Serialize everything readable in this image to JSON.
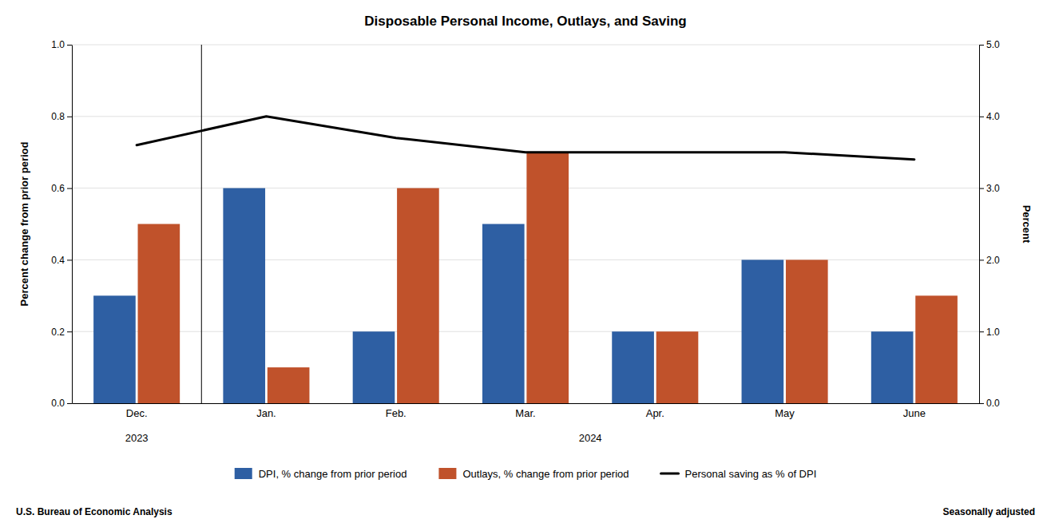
{
  "chart_data": {
    "type": "bar",
    "title": "Disposable Personal Income, Outlays, and Saving",
    "categories": [
      "Dec.",
      "Jan.",
      "Feb.",
      "Mar.",
      "Apr.",
      "May",
      "June"
    ],
    "series": [
      {
        "name": "DPI, % change from prior period",
        "color": "#2E5FA3",
        "values": [
          0.3,
          0.6,
          0.2,
          0.5,
          0.2,
          0.4,
          0.2
        ]
      },
      {
        "name": "Outlays, % change from prior period",
        "color": "#C0522B",
        "values": [
          0.5,
          0.1,
          0.6,
          0.7,
          0.2,
          0.4,
          0.3
        ]
      },
      {
        "name": "Personal saving as % of DPI",
        "color": "#000000",
        "type": "line",
        "axis": "y2",
        "values": [
          3.6,
          4.0,
          3.7,
          3.5,
          3.5,
          3.5,
          3.4
        ]
      }
    ],
    "ylim": [
      0.0,
      1.0
    ],
    "yticks": [
      {
        "value": 0.0,
        "label": "0.0"
      },
      0.2,
      0.4,
      0.6,
      0.8,
      {
        "value": 1.0,
        "label": "1.0"
      }
    ],
    "y2lim": [
      0.0,
      5.0
    ],
    "y2ticks": [
      {
        "value": 0.0,
        "label": "0.0"
      },
      {
        "value": 1.0,
        "label": "1.0"
      },
      {
        "value": 2.0,
        "label": "2.0"
      },
      {
        "value": 3.0,
        "label": "3.0"
      },
      {
        "value": 4.0,
        "label": "4.0"
      },
      {
        "value": 5.0,
        "label": "5.0"
      }
    ],
    "ylabel": "Percent change from prior period",
    "y2label": "Percent",
    "grid": true,
    "legend": "bottom",
    "annotations": [
      {
        "text": "2023",
        "start": "Dec.",
        "end": "Dec."
      },
      {
        "text": "2024",
        "start": "Jan.",
        "end": "June"
      },
      {
        "text": "U.S. Bureau of Economic Analysis"
      },
      {
        "text": "Seasonally adjusted"
      }
    ]
  }
}
